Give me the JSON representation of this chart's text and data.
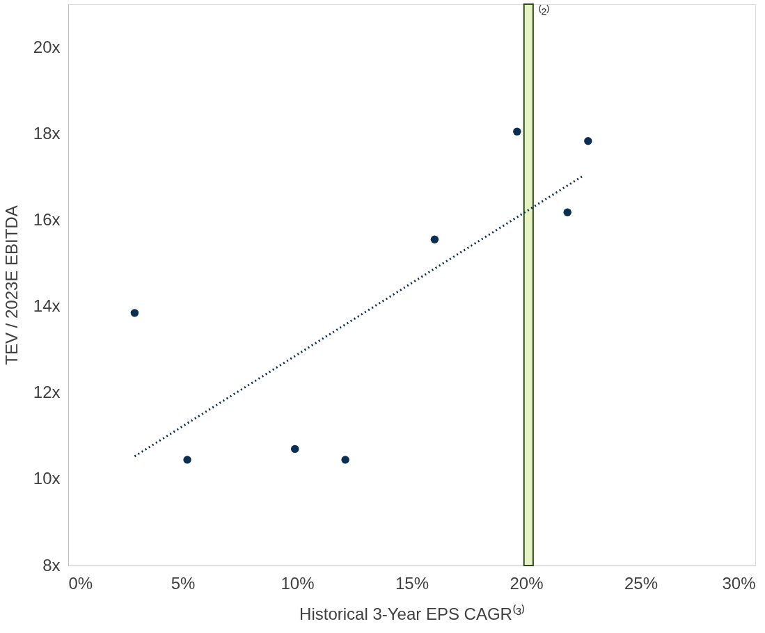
{
  "chart_data": {
    "type": "scatter",
    "xlabel": "Historical 3-Year EPS CAGR⁽³⁾",
    "ylabel": "TEV / 2023E EBITDA",
    "xlim": [
      0,
      30
    ],
    "ylim": [
      8,
      21
    ],
    "xticks": [
      {
        "value": 0,
        "label": "0%"
      },
      {
        "value": 5,
        "label": "5%"
      },
      {
        "value": 10,
        "label": "10%"
      },
      {
        "value": 15,
        "label": "15%"
      },
      {
        "value": 20,
        "label": "20%"
      },
      {
        "value": 25,
        "label": "25%"
      },
      {
        "value": 30,
        "label": "30%"
      }
    ],
    "yticks": [
      {
        "value": 8,
        "label": "8x"
      },
      {
        "value": 10,
        "label": "10x"
      },
      {
        "value": 12,
        "label": "12x"
      },
      {
        "value": 14,
        "label": "14x"
      },
      {
        "value": 16,
        "label": "16x"
      },
      {
        "value": 18,
        "label": "18x"
      },
      {
        "value": 20,
        "label": "20x"
      }
    ],
    "grid": false,
    "legend": false,
    "marker": "circle",
    "series": [
      {
        "color": "#0b2f52",
        "x": [
          2.9,
          5.2,
          9.9,
          12.1,
          16.0,
          19.6,
          21.8,
          22.7
        ],
        "values": [
          13.85,
          10.45,
          10.7,
          10.45,
          15.55,
          18.05,
          16.18,
          17.83
        ]
      },
      {
        "type": "line",
        "color": "#0b2f52",
        "line_style": "dotted",
        "marker": "none",
        "x": [
          2.9,
          22.5
        ],
        "values": [
          10.53,
          17.03
        ]
      }
    ],
    "bands": [
      {
        "axis": "x",
        "from": 19.9,
        "to": 20.3,
        "color": "#e6f2c4",
        "label": "⁽²⁾"
      }
    ]
  }
}
